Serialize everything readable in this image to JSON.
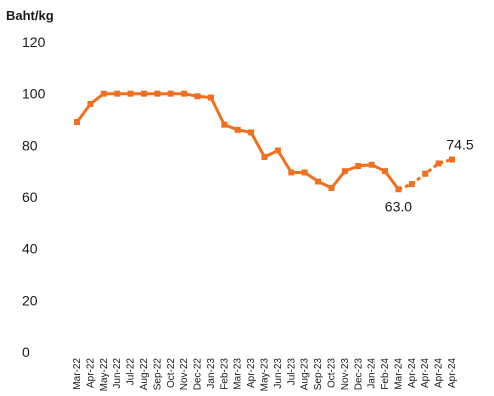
{
  "chart_data": {
    "type": "line",
    "ylabel": "Baht/kg",
    "ylim": [
      0,
      120
    ],
    "yticks": [
      0,
      20,
      40,
      60,
      80,
      100,
      120
    ],
    "grid": false,
    "line_color": "#f07020",
    "categories": [
      "Mar-22",
      "Apr-22",
      "May-22",
      "Jun-22",
      "Jul-22",
      "Aug-22",
      "Sep-22",
      "Oct-22",
      "Nov-22",
      "Dec-22",
      "Jan-23",
      "Feb-23",
      "Mar-23",
      "Apr-23",
      "May-23",
      "Jun-23",
      "Jul-23",
      "Aug-23",
      "Sep-23",
      "Oct-23",
      "Nov-23",
      "Dec-23",
      "Jan-24",
      "Feb-24",
      "Mar-24",
      "Apr-24",
      "Apr-24",
      "Apr-24",
      "Apr-24"
    ],
    "series": [
      {
        "values": [
          89,
          96,
          100,
          100,
          100,
          100,
          100,
          100,
          100,
          99,
          98.5,
          88,
          86,
          85,
          75.5,
          78,
          69.5,
          69.5,
          66,
          63.5,
          70,
          72,
          72.5,
          70,
          63,
          65,
          69,
          73,
          74.5
        ],
        "dashed_from_index": 24
      }
    ],
    "annotations": [
      {
        "index": 24,
        "text": "63.0"
      },
      {
        "index": 28,
        "text": "74.5"
      }
    ]
  }
}
